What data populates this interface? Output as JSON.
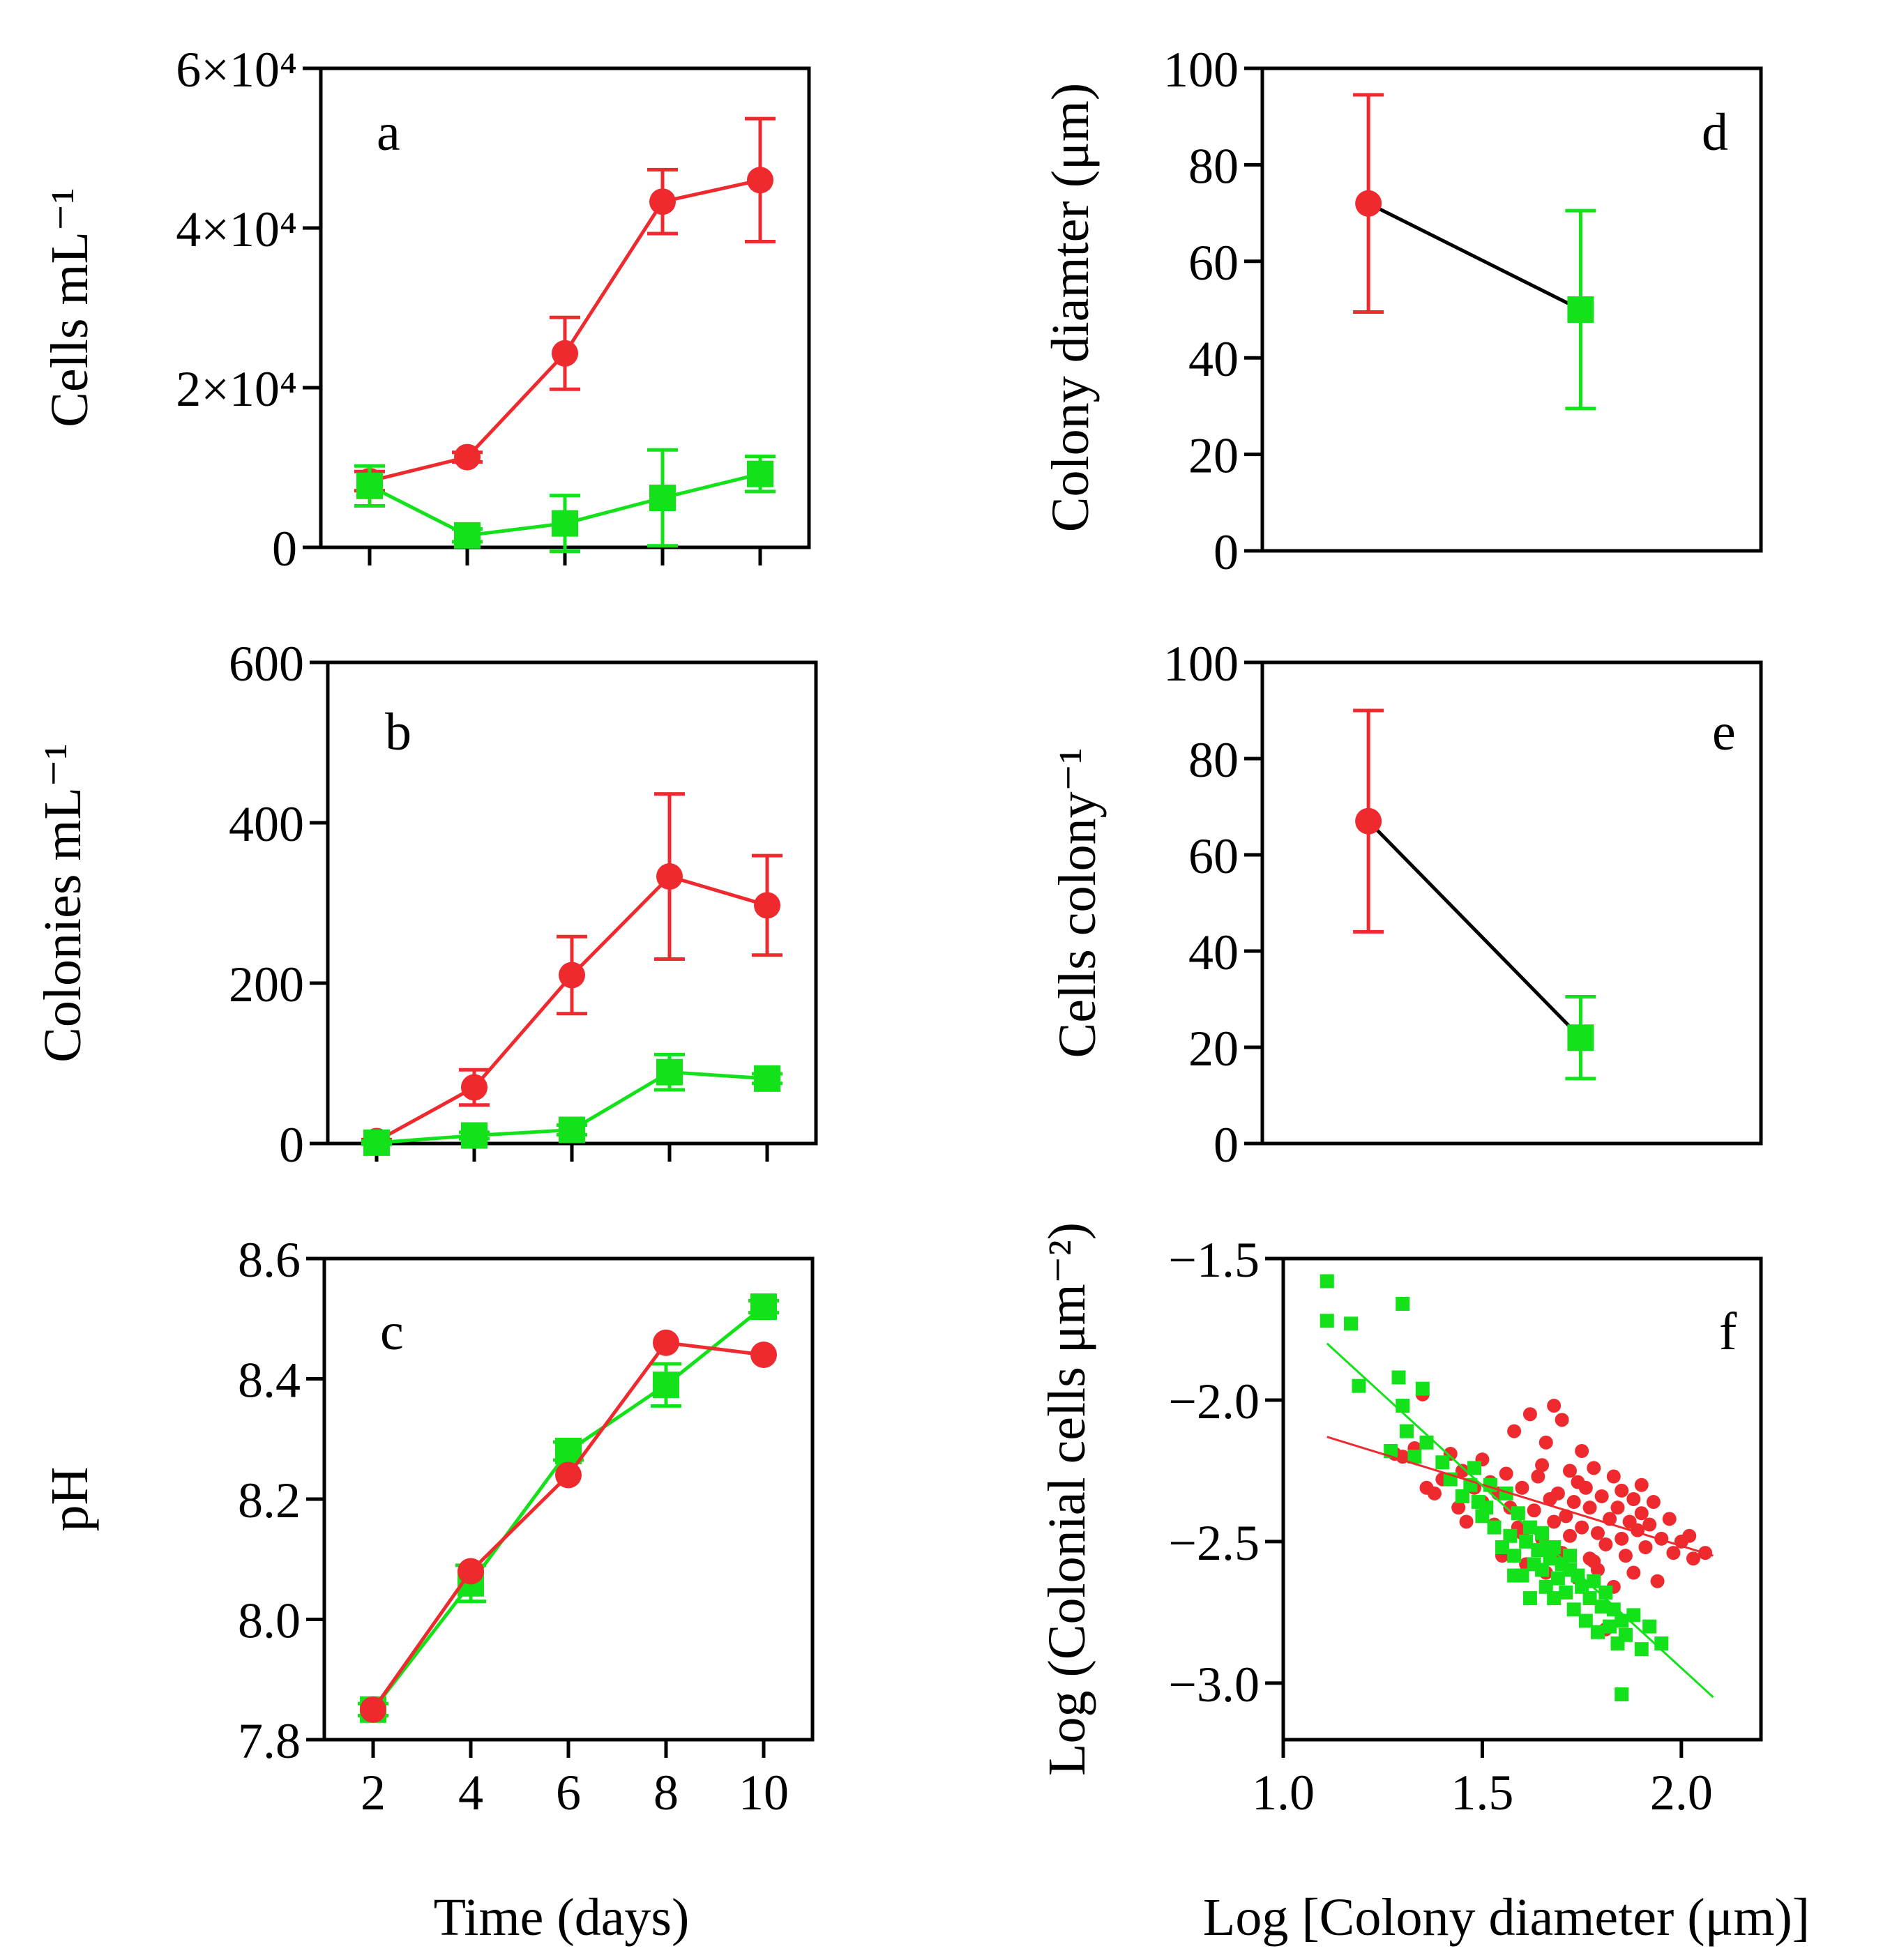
{
  "figure": {
    "x_label_left": "Time (days)",
    "x_label_right": "Log [Colony diameter (μm)]"
  },
  "chart_data": [
    {
      "id": "a",
      "panel_label": "a",
      "type": "line",
      "ylabel": "Cells mL⁻¹",
      "x": [
        2,
        4,
        6,
        8,
        10
      ],
      "xlim": [
        1,
        11
      ],
      "ylim": [
        0,
        60000
      ],
      "yticks": [
        0,
        20000,
        40000,
        60000
      ],
      "ytick_labels": [
        "0",
        "2×10⁴",
        "4×10⁴",
        "6×10⁴"
      ],
      "xticks": [
        2,
        4,
        6,
        8,
        10
      ],
      "xtick_labels": [],
      "series": [
        {
          "name": "red",
          "color": "#ee2a2f",
          "marker": "circle",
          "values": [
            8300,
            11300,
            24300,
            43300,
            46000
          ],
          "errors": [
            1200,
            600,
            4500,
            4000,
            7700
          ]
        },
        {
          "name": "green",
          "color": "#13e21a",
          "marker": "square",
          "values": [
            7700,
            1500,
            3000,
            6200,
            9200
          ],
          "errors": [
            2500,
            800,
            3500,
            6000,
            2200
          ]
        }
      ]
    },
    {
      "id": "b",
      "panel_label": "b",
      "type": "line",
      "ylabel": "Colonies mL⁻¹",
      "x": [
        2,
        4,
        6,
        8,
        10
      ],
      "xlim": [
        1,
        11
      ],
      "ylim": [
        0,
        600
      ],
      "yticks": [
        0,
        200,
        400,
        600
      ],
      "ytick_labels": [
        "0",
        "200",
        "400",
        "600"
      ],
      "xticks": [
        2,
        4,
        6,
        8,
        10
      ],
      "xtick_labels": [],
      "series": [
        {
          "name": "red",
          "color": "#ee2a2f",
          "marker": "circle",
          "values": [
            3,
            70,
            210,
            333,
            297
          ],
          "errors": [
            2,
            22,
            48,
            103,
            62
          ]
        },
        {
          "name": "green",
          "color": "#13e21a",
          "marker": "square",
          "values": [
            1,
            10,
            17,
            89,
            81
          ],
          "errors": [
            2,
            4,
            6,
            22,
            6
          ]
        }
      ]
    },
    {
      "id": "c",
      "panel_label": "c",
      "type": "line",
      "ylabel": "pH",
      "x": [
        2,
        4,
        6,
        8,
        10
      ],
      "xlim": [
        1,
        11
      ],
      "ylim": [
        7.8,
        8.6
      ],
      "yticks": [
        7.8,
        8.0,
        8.2,
        8.4,
        8.6
      ],
      "ytick_labels": [
        "7.8",
        "8.0",
        "8.2",
        "8.4",
        "8.6"
      ],
      "xticks": [
        2,
        4,
        6,
        8,
        10
      ],
      "xtick_labels": [
        "2",
        "4",
        "6",
        "8",
        "10"
      ],
      "series": [
        {
          "name": "green",
          "color": "#13e21a",
          "marker": "square",
          "values": [
            7.85,
            8.06,
            8.28,
            8.39,
            8.52
          ],
          "errors": [
            0.01,
            0.03,
            0.015,
            0.035,
            0.01
          ]
        },
        {
          "name": "red",
          "color": "#ee2a2f",
          "marker": "circle",
          "values": [
            7.85,
            8.08,
            8.24,
            8.46,
            8.44
          ],
          "errors": [
            0,
            0,
            0,
            0,
            0
          ]
        }
      ]
    },
    {
      "id": "d",
      "panel_label": "d",
      "type": "line",
      "ylabel": "Colony diamter (μm)",
      "x": [
        1,
        2
      ],
      "xlim": [
        0.5,
        2.85
      ],
      "ylim": [
        0,
        100
      ],
      "yticks": [
        0,
        20,
        40,
        60,
        80,
        100
      ],
      "ytick_labels": [
        "0",
        "20",
        "40",
        "60",
        "80",
        "100"
      ],
      "connector_color": "#000000",
      "points": [
        {
          "x": 1,
          "value": 72,
          "error": 22.5,
          "color": "#ee2a2f",
          "marker": "circle"
        },
        {
          "x": 2,
          "value": 50,
          "error": 20.5,
          "color": "#13e21a",
          "marker": "square"
        }
      ]
    },
    {
      "id": "e",
      "panel_label": "e",
      "type": "line",
      "ylabel": "Cells colony⁻¹",
      "x": [
        1,
        2
      ],
      "xlim": [
        0.5,
        2.85
      ],
      "ylim": [
        0,
        100
      ],
      "yticks": [
        0,
        20,
        40,
        60,
        80,
        100
      ],
      "ytick_labels": [
        "0",
        "20",
        "40",
        "60",
        "80",
        "100"
      ],
      "connector_color": "#000000",
      "points": [
        {
          "x": 1,
          "value": 67,
          "error": 23,
          "color": "#ee2a2f",
          "marker": "circle"
        },
        {
          "x": 2,
          "value": 22,
          "error": 8.5,
          "color": "#13e21a",
          "marker": "square"
        }
      ]
    },
    {
      "id": "f",
      "panel_label": "f",
      "type": "scatter",
      "ylabel": "Log (Colonial cells μm⁻²)",
      "xlim": [
        1.0,
        2.2
      ],
      "ylim": [
        -3.2,
        -1.5
      ],
      "xticks": [
        1.0,
        1.5,
        2.0
      ],
      "xtick_labels": [
        "1.0",
        "1.5",
        "2.0"
      ],
      "yticks": [
        -3.0,
        -2.5,
        -2.0,
        -1.5
      ],
      "ytick_labels": [
        "-3.0",
        "-2.5",
        "-2.0",
        "-1.5"
      ],
      "series": [
        {
          "name": "red",
          "color": "#ee2a2f",
          "marker": "circle",
          "fit": {
            "x": [
              1.11,
              2.08
            ],
            "y": [
              -2.13,
              -2.55
            ]
          },
          "points": [
            [
              1.28,
              -2.19
            ],
            [
              1.3,
              -2.2
            ],
            [
              1.33,
              -2.17
            ],
            [
              1.35,
              -1.98
            ],
            [
              1.36,
              -2.31
            ],
            [
              1.38,
              -2.33
            ],
            [
              1.4,
              -2.28
            ],
            [
              1.42,
              -2.19
            ],
            [
              1.44,
              -2.38
            ],
            [
              1.45,
              -2.25
            ],
            [
              1.46,
              -2.43
            ],
            [
              1.48,
              -2.31
            ],
            [
              1.5,
              -2.36
            ],
            [
              1.5,
              -2.21
            ],
            [
              1.52,
              -2.29
            ],
            [
              1.53,
              -2.44
            ],
            [
              1.55,
              -2.55
            ],
            [
              1.56,
              -2.26
            ],
            [
              1.57,
              -2.38
            ],
            [
              1.58,
              -2.11
            ],
            [
              1.59,
              -2.45
            ],
            [
              1.6,
              -2.31
            ],
            [
              1.61,
              -2.58
            ],
            [
              1.62,
              -2.05
            ],
            [
              1.63,
              -2.39
            ],
            [
              1.64,
              -2.27
            ],
            [
              1.65,
              -2.49
            ],
            [
              1.65,
              -2.23
            ],
            [
              1.66,
              -2.61
            ],
            [
              1.67,
              -2.35
            ],
            [
              1.68,
              -2.43
            ],
            [
              1.68,
              -2.02
            ],
            [
              1.69,
              -2.33
            ],
            [
              1.7,
              -2.07
            ],
            [
              1.7,
              -2.54
            ],
            [
              1.71,
              -2.41
            ],
            [
              1.72,
              -2.25
            ],
            [
              1.72,
              -2.48
            ],
            [
              1.73,
              -2.36
            ],
            [
              1.74,
              -2.63
            ],
            [
              1.75,
              -2.45
            ],
            [
              1.75,
              -2.18
            ],
            [
              1.76,
              -2.31
            ],
            [
              1.77,
              -2.56
            ],
            [
              1.77,
              -2.38
            ],
            [
              1.78,
              -2.24
            ],
            [
              1.79,
              -2.47
            ],
            [
              1.79,
              -2.6
            ],
            [
              1.8,
              -2.34
            ],
            [
              1.81,
              -2.51
            ],
            [
              1.81,
              -2.81
            ],
            [
              1.82,
              -2.42
            ],
            [
              1.83,
              -2.27
            ],
            [
              1.83,
              -2.66
            ],
            [
              1.84,
              -2.38
            ],
            [
              1.85,
              -2.49
            ],
            [
              1.85,
              -2.32
            ],
            [
              1.86,
              -2.55
            ],
            [
              1.87,
              -2.43
            ],
            [
              1.88,
              -2.35
            ],
            [
              1.88,
              -2.61
            ],
            [
              1.89,
              -2.46
            ],
            [
              1.9,
              -2.4
            ],
            [
              1.9,
              -2.3
            ],
            [
              1.91,
              -2.52
            ],
            [
              1.92,
              -2.44
            ],
            [
              1.93,
              -2.36
            ],
            [
              1.94,
              -2.64
            ],
            [
              1.95,
              -2.49
            ],
            [
              1.97,
              -2.42
            ],
            [
              1.98,
              -2.54
            ],
            [
              2.0,
              -2.5
            ],
            [
              2.02,
              -2.48
            ],
            [
              2.03,
              -2.56
            ],
            [
              2.06,
              -2.54
            ],
            [
              1.66,
              -2.15
            ],
            [
              1.74,
              -2.29
            ],
            [
              1.78,
              -2.57
            ],
            [
              1.6,
              -2.47
            ],
            [
              1.54,
              -2.33
            ]
          ]
        },
        {
          "name": "green",
          "color": "#13e21a",
          "marker": "square",
          "fit": {
            "x": [
              1.11,
              2.08
            ],
            "y": [
              -1.8,
              -3.05
            ]
          },
          "points": [
            [
              1.11,
              -1.58
            ],
            [
              1.11,
              -1.72
            ],
            [
              1.17,
              -1.73
            ],
            [
              1.19,
              -1.95
            ],
            [
              1.27,
              -2.18
            ],
            [
              1.29,
              -1.92
            ],
            [
              1.3,
              -1.66
            ],
            [
              1.3,
              -2.02
            ],
            [
              1.31,
              -2.11
            ],
            [
              1.33,
              -2.2
            ],
            [
              1.35,
              -1.96
            ],
            [
              1.36,
              -2.15
            ],
            [
              1.4,
              -2.22
            ],
            [
              1.42,
              -2.28
            ],
            [
              1.45,
              -2.34
            ],
            [
              1.47,
              -2.3
            ],
            [
              1.48,
              -2.24
            ],
            [
              1.49,
              -2.36
            ],
            [
              1.5,
              -2.41
            ],
            [
              1.51,
              -2.38
            ],
            [
              1.52,
              -2.3
            ],
            [
              1.53,
              -2.45
            ],
            [
              1.55,
              -2.52
            ],
            [
              1.56,
              -2.33
            ],
            [
              1.57,
              -2.48
            ],
            [
              1.58,
              -2.55
            ],
            [
              1.59,
              -2.4
            ],
            [
              1.6,
              -2.62
            ],
            [
              1.61,
              -2.5
            ],
            [
              1.62,
              -2.45
            ],
            [
              1.63,
              -2.58
            ],
            [
              1.64,
              -2.53
            ],
            [
              1.65,
              -2.6
            ],
            [
              1.65,
              -2.47
            ],
            [
              1.66,
              -2.66
            ],
            [
              1.67,
              -2.56
            ],
            [
              1.68,
              -2.52
            ],
            [
              1.68,
              -2.7
            ],
            [
              1.69,
              -2.63
            ],
            [
              1.7,
              -2.58
            ],
            [
              1.71,
              -2.68
            ],
            [
              1.72,
              -2.55
            ],
            [
              1.73,
              -2.74
            ],
            [
              1.74,
              -2.62
            ],
            [
              1.75,
              -2.66
            ],
            [
              1.76,
              -2.78
            ],
            [
              1.77,
              -2.7
            ],
            [
              1.78,
              -2.64
            ],
            [
              1.79,
              -2.82
            ],
            [
              1.8,
              -2.73
            ],
            [
              1.81,
              -2.68
            ],
            [
              1.82,
              -2.8
            ],
            [
              1.83,
              -2.74
            ],
            [
              1.84,
              -2.86
            ],
            [
              1.85,
              -2.78
            ],
            [
              1.86,
              -2.83
            ],
            [
              1.88,
              -2.76
            ],
            [
              1.9,
              -2.88
            ],
            [
              1.92,
              -2.8
            ],
            [
              1.85,
              -3.04
            ],
            [
              1.62,
              -2.7
            ],
            [
              1.58,
              -2.62
            ],
            [
              1.72,
              -2.6
            ],
            [
              1.95,
              -2.86
            ],
            [
              1.66,
              -2.52
            ]
          ]
        }
      ]
    }
  ]
}
